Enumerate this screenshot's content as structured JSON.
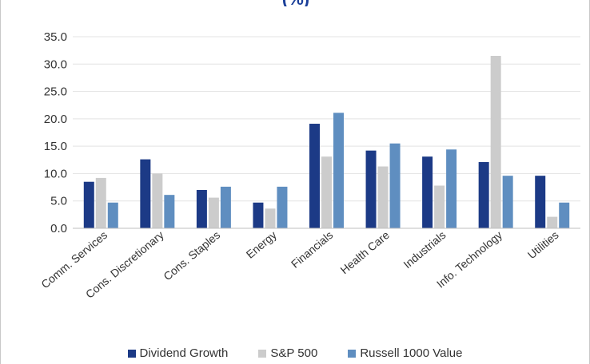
{
  "chart_data": {
    "type": "bar",
    "title": "(%)",
    "categories": [
      "Comm. Services",
      "Cons. Discretionary",
      "Cons. Staples",
      "Energy",
      "Financials",
      "Health Care",
      "Industrials",
      "Info. Technology",
      "Utilities"
    ],
    "series": [
      {
        "name": "Dividend Growth",
        "color": "#1c3a86",
        "values": [
          8.5,
          12.6,
          7.0,
          4.7,
          19.1,
          14.2,
          13.1,
          12.1,
          9.6
        ]
      },
      {
        "name": "S&P 500",
        "color": "#cccccc",
        "values": [
          9.2,
          10.0,
          5.6,
          3.6,
          13.1,
          11.3,
          7.8,
          31.5,
          2.1
        ]
      },
      {
        "name": "Russell 1000 Value",
        "color": "#5f8ec0",
        "values": [
          4.7,
          6.1,
          7.6,
          7.6,
          21.1,
          15.5,
          14.4,
          9.6,
          4.7
        ]
      }
    ],
    "y_ticks": [
      "0.0",
      "5.0",
      "10.0",
      "15.0",
      "20.0",
      "25.0",
      "30.0",
      "35.0"
    ],
    "ylim": [
      0,
      35
    ],
    "grid": "horizontal",
    "legend": "bottom-center"
  }
}
